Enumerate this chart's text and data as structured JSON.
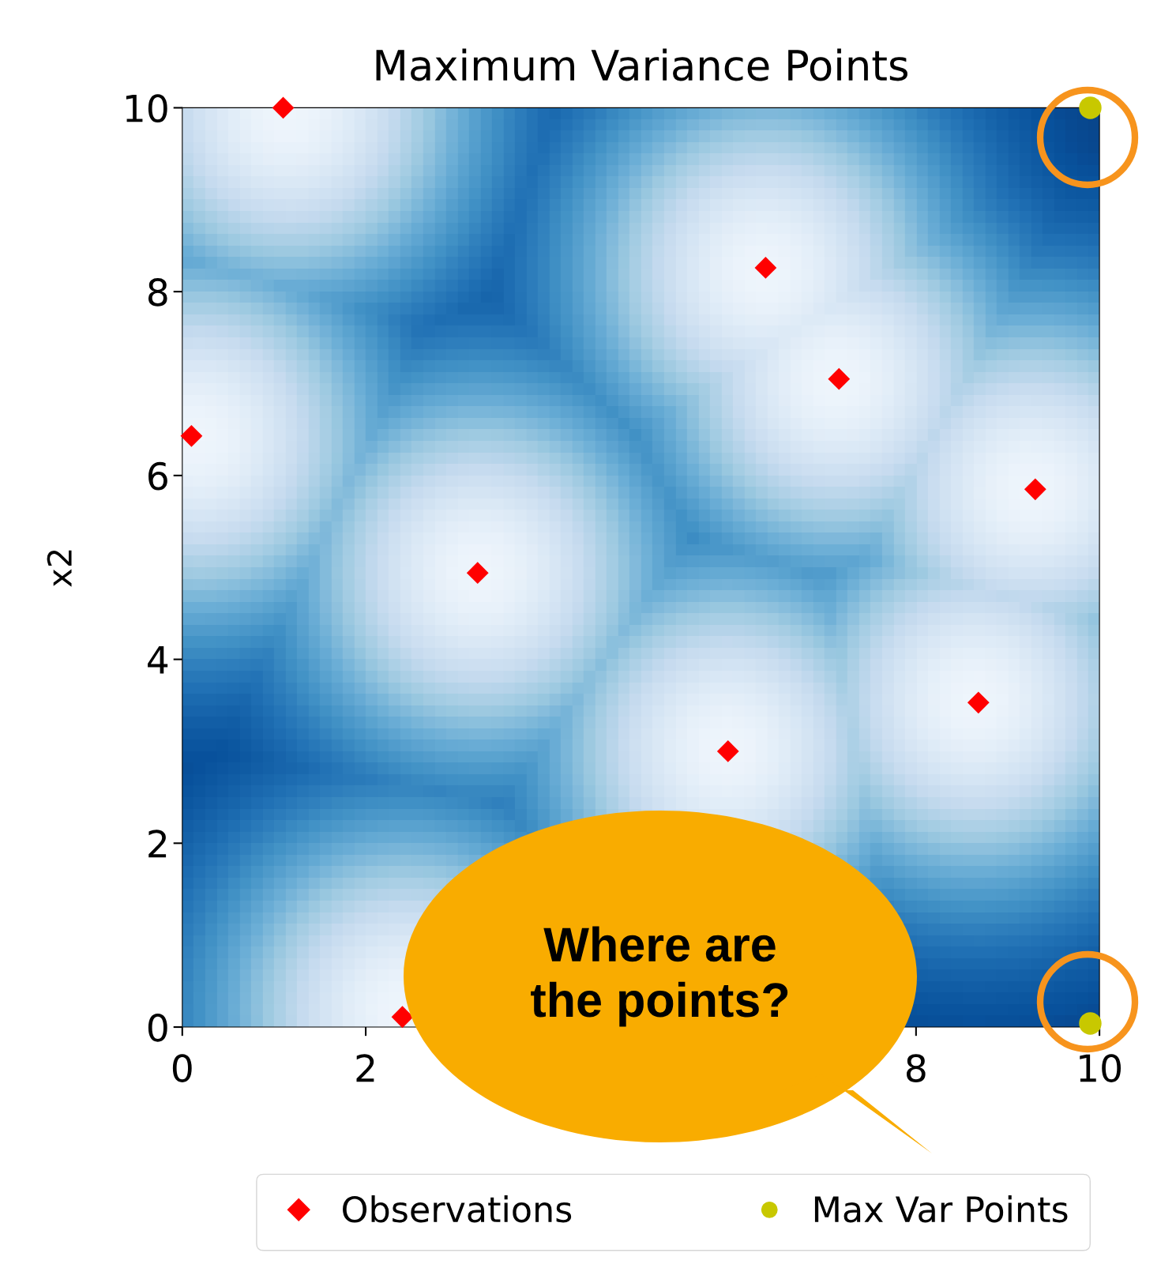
{
  "chart_data": {
    "type": "scatter",
    "title": "Maximum Variance Points",
    "ylabel": "x2",
    "xlim": [
      0,
      10
    ],
    "ylim": [
      0,
      10
    ],
    "xticks": [
      0,
      2,
      8,
      10
    ],
    "yticks": [
      0,
      2,
      4,
      6,
      8,
      10
    ],
    "grid": false,
    "legend": "bottom",
    "series": [
      {
        "name": "Observations",
        "color": "#ff0000",
        "marker": "diamond",
        "x": [
          1.1,
          6.36,
          7.16,
          0.1,
          9.3,
          3.22,
          8.68,
          5.95,
          2.4
        ],
        "values": [
          10.0,
          8.26,
          7.05,
          6.43,
          5.85,
          4.94,
          3.53,
          3.0,
          0.11
        ]
      },
      {
        "name": "Max Var Points",
        "color": "#c8c800",
        "marker": "circle",
        "x": [
          9.9,
          9.9
        ],
        "values": [
          10.0,
          0.04
        ]
      }
    ],
    "annotations": [
      "Where are\nthe points?"
    ]
  }
}
